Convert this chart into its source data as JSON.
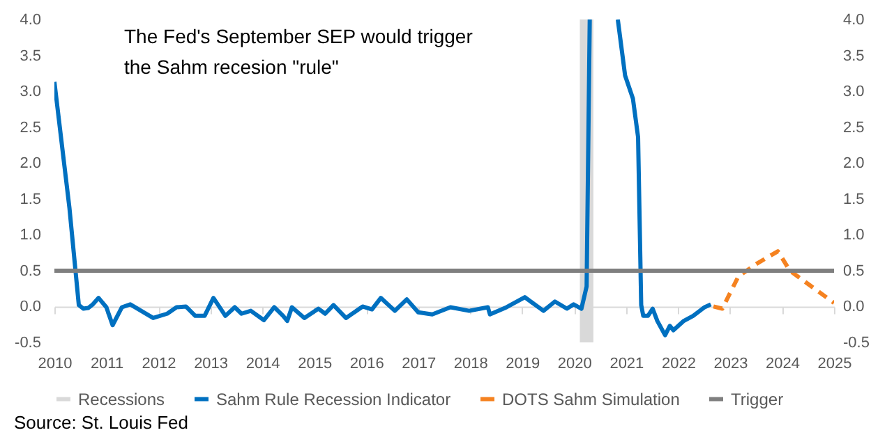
{
  "chart_data": {
    "type": "line",
    "title": "The Fed's September SEP would trigger the Sahm recesion \"rule\"",
    "annotations": [
      "Source: St. Louis Fed"
    ],
    "xlim": [
      2010,
      2025
    ],
    "xticks": [
      2010,
      2011,
      2012,
      2013,
      2014,
      2015,
      2016,
      2017,
      2018,
      2019,
      2020,
      2021,
      2022,
      2023,
      2024,
      2025
    ],
    "ylim": [
      -0.5,
      4.0
    ],
    "yticks": [
      -0.5,
      {
        "value": 0,
        "label": "0.0"
      },
      0.5,
      {
        "value": 1,
        "label": "1.0"
      },
      1.5,
      {
        "value": 2,
        "label": "2.0"
      },
      2.5,
      {
        "value": 3,
        "label": "3.0"
      },
      3.5,
      {
        "value": 4,
        "label": "4.0"
      }
    ],
    "y2lim": [
      -0.5,
      4.0
    ],
    "y2ticks": [
      -0.5,
      {
        "value": 0,
        "label": "0.0"
      },
      0.5,
      {
        "value": 1,
        "label": "1.0"
      },
      1.5,
      {
        "value": 2,
        "label": "2.0"
      },
      2.5,
      {
        "value": 3,
        "label": "3.0"
      },
      3.5,
      {
        "value": 4,
        "label": "4.0"
      }
    ],
    "legend": "bottom",
    "grid": false,
    "marker": "none",
    "series": [
      {
        "name": "Sahm Rule Recession Indicator",
        "color": "#0070c0",
        "line_style": "solid",
        "x": [
          2010.0,
          2010.29,
          2010.47,
          2010.56,
          2010.65,
          2010.74,
          2010.85,
          2011.0,
          2011.12,
          2011.3,
          2011.46,
          2011.9,
          2012.17,
          2012.35,
          2012.53,
          2012.71,
          2012.89,
          2013.06,
          2013.29,
          2013.47,
          2013.6,
          2013.78,
          2014.03,
          2014.23,
          2014.4,
          2014.48,
          2014.57,
          2014.81,
          2015.08,
          2015.21,
          2015.37,
          2015.61,
          2015.93,
          2016.11,
          2016.28,
          2016.55,
          2016.78,
          2017.0,
          2017.27,
          2017.62,
          2017.98,
          2018.34,
          2018.38,
          2018.7,
          2019.05,
          2019.41,
          2019.63,
          2019.86,
          2019.99,
          2020.14,
          2020.24,
          2020.3,
          2020.5,
          2020.84,
          2020.98,
          2021.13,
          2021.23,
          2021.29,
          2021.33,
          2021.42,
          2021.51,
          2021.6,
          2021.75,
          2021.84,
          2021.91,
          2022.11,
          2022.29,
          2022.51,
          2022.63
        ],
        "values": [
          3.13,
          1.37,
          0.02,
          -0.03,
          -0.02,
          0.03,
          0.12,
          -0.01,
          -0.26,
          -0.01,
          0.03,
          -0.16,
          -0.1,
          -0.01,
          0.0,
          -0.13,
          -0.13,
          0.12,
          -0.13,
          -0.01,
          -0.1,
          -0.06,
          -0.19,
          -0.01,
          -0.13,
          -0.2,
          -0.01,
          -0.16,
          -0.03,
          -0.1,
          0.02,
          -0.16,
          0.0,
          -0.04,
          0.12,
          -0.06,
          0.1,
          -0.08,
          -0.11,
          -0.01,
          -0.06,
          -0.01,
          -0.11,
          -0.01,
          0.13,
          -0.06,
          0.07,
          -0.03,
          0.03,
          -0.03,
          0.28,
          4.0,
          null,
          4.0,
          3.22,
          2.9,
          2.36,
          0.02,
          -0.13,
          -0.13,
          -0.03,
          -0.2,
          -0.4,
          -0.27,
          -0.33,
          -0.2,
          -0.13,
          -0.01,
          0.03
        ]
      },
      {
        "name": "DOTS Sahm Simulation",
        "color": "#f58220",
        "line_style": "dashed",
        "x": [
          2022.68,
          2022.85,
          2023.16,
          2023.52,
          2023.92,
          2024.15,
          2025.0
        ],
        "values": [
          0.0,
          -0.03,
          0.42,
          0.6,
          0.77,
          0.5,
          0.05
        ]
      }
    ],
    "ref_lines": [
      {
        "axis": "y",
        "value": 0.5,
        "label": "Trigger",
        "color": "#7f7f7f"
      }
    ],
    "bands": [
      {
        "axis": "x",
        "from": 2020.11,
        "to": 2020.37,
        "label": "Recessions",
        "color": "#d9d9d9"
      }
    ]
  }
}
